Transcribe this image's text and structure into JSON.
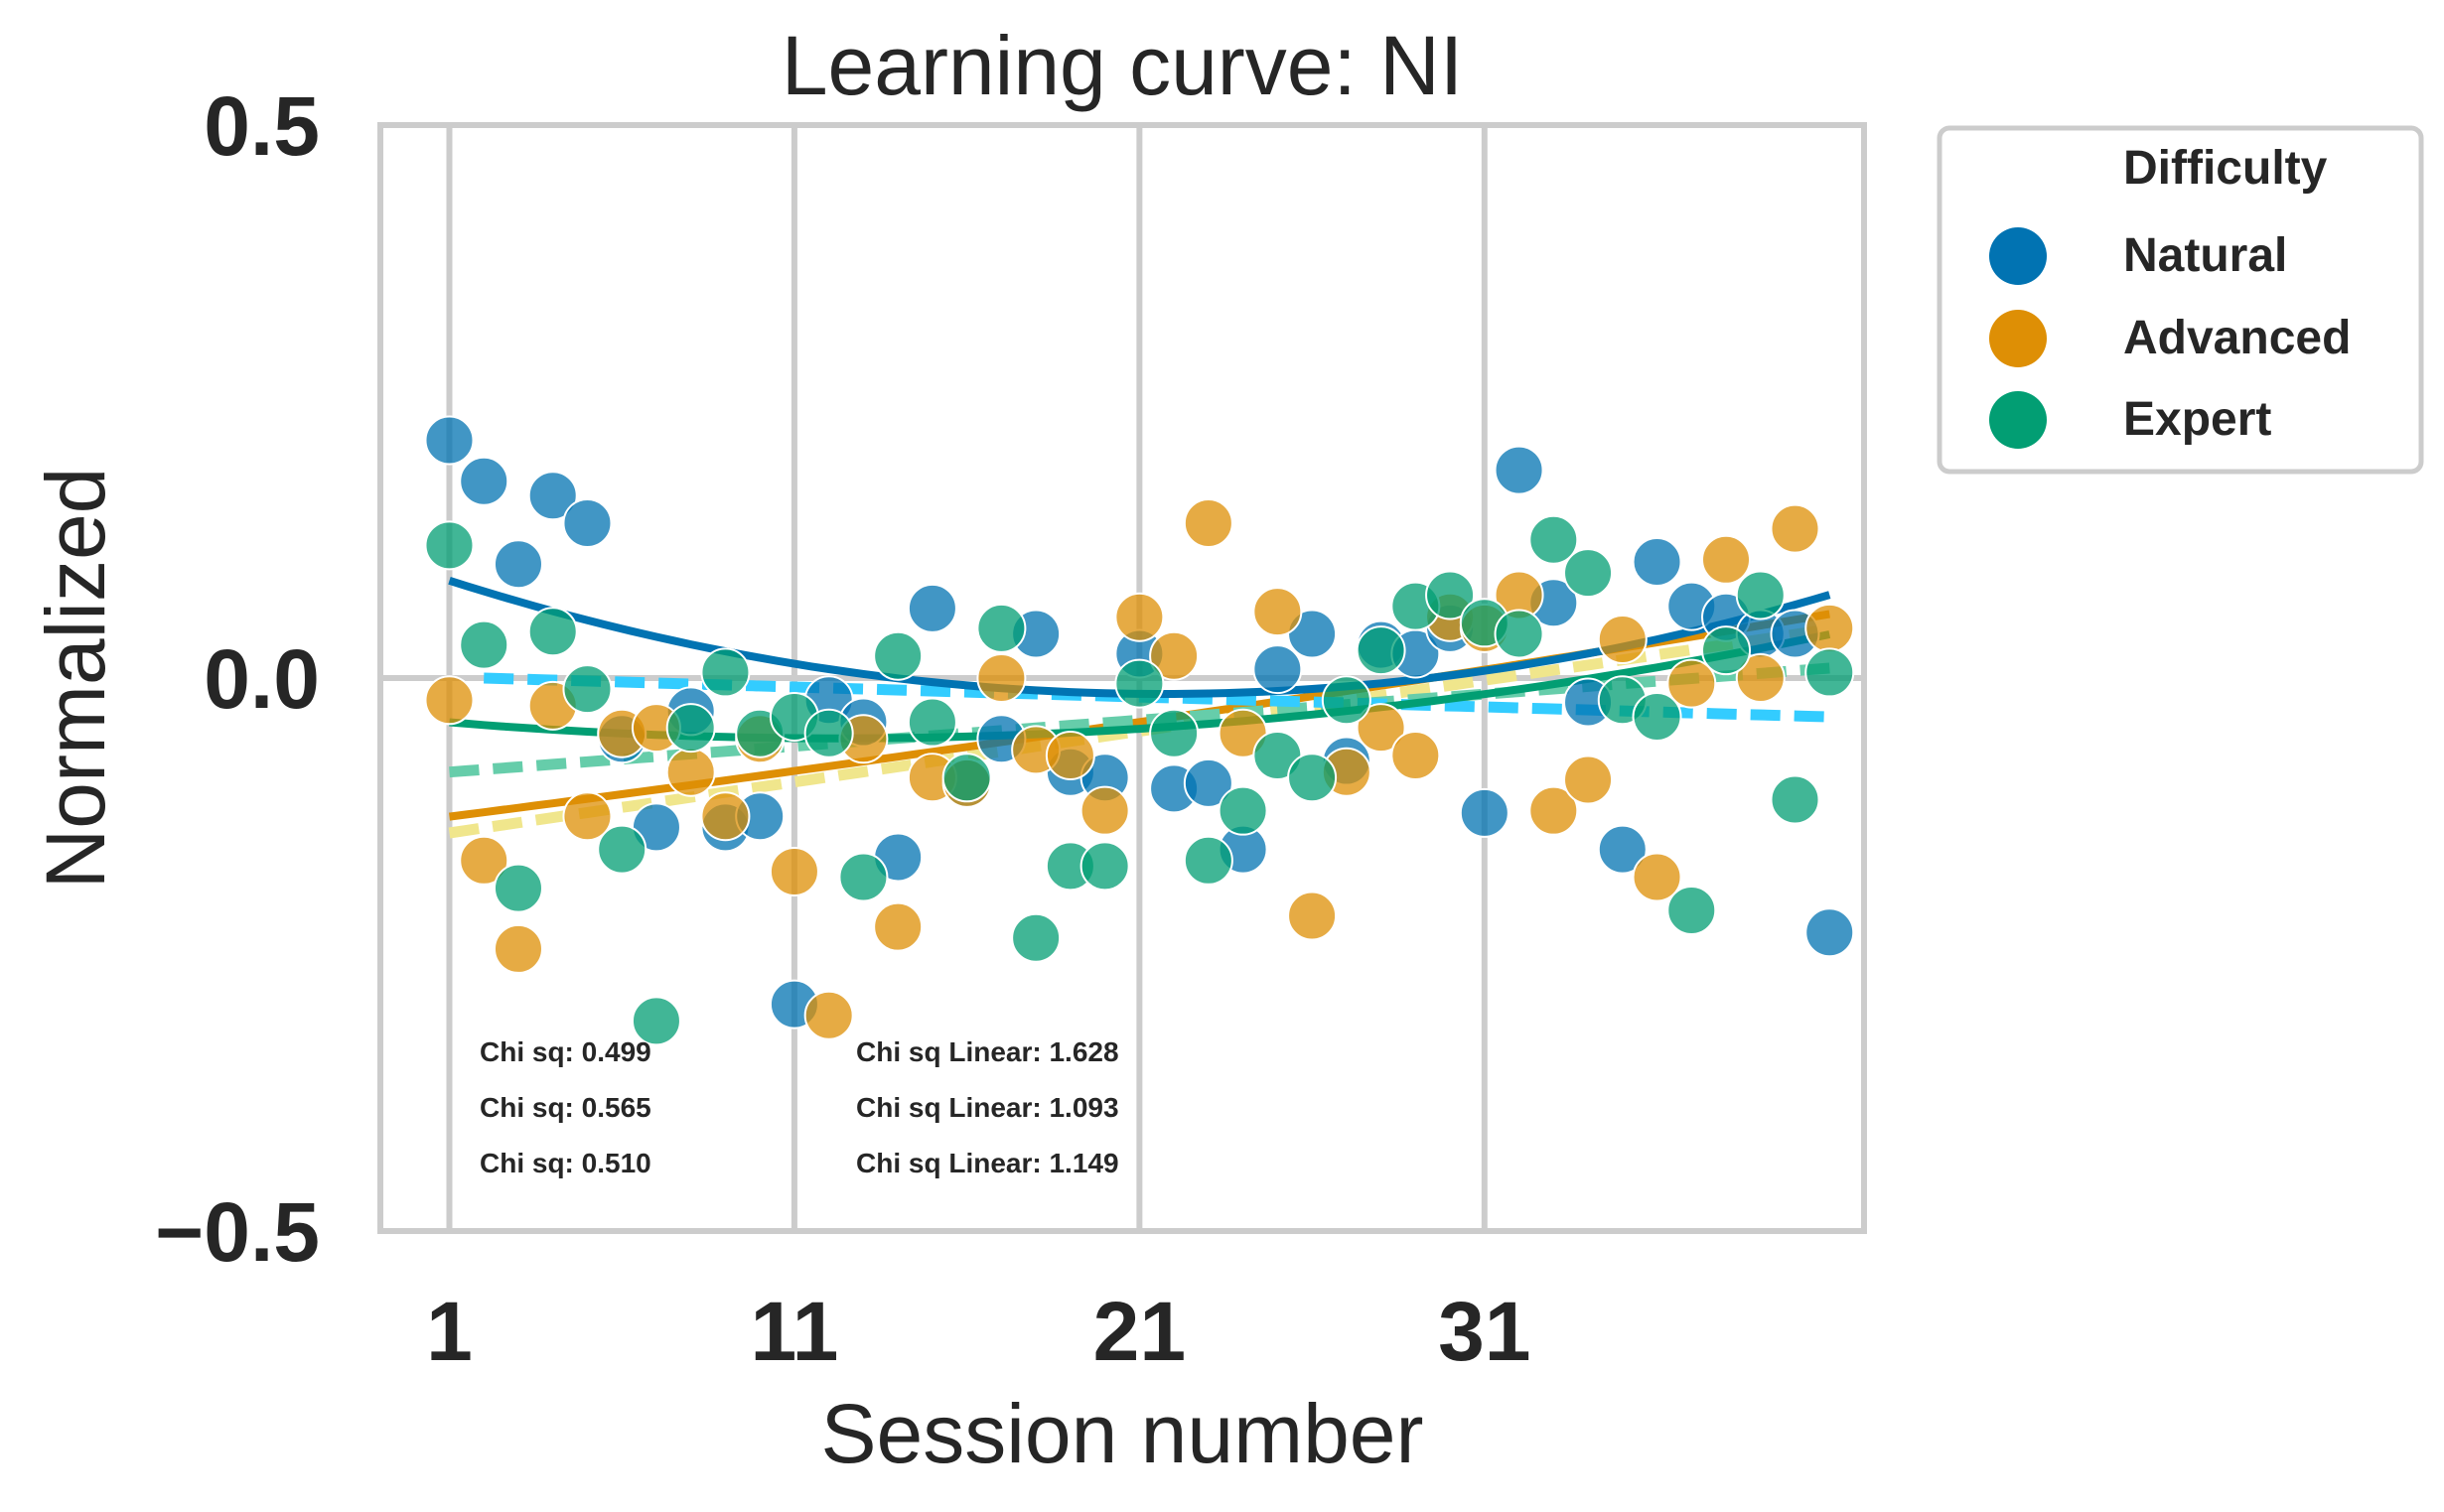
{
  "chart_data": {
    "type": "scatter",
    "title": "Learning curve: NI",
    "xlabel": "Session number",
    "ylabel": "Normalized",
    "xlim": [
      -1,
      42
    ],
    "ylim": [
      -0.5,
      0.5
    ],
    "xticks": [
      1,
      11,
      21,
      31
    ],
    "yticks": [
      0.5,
      0.0,
      -0.5
    ],
    "ytick_labels": [
      "0.5",
      "0.0",
      "−0.5"
    ],
    "grid": true,
    "legend": {
      "title": "Difficulty",
      "placement": "outside-top-right",
      "entries": [
        "Natural",
        "Advanced",
        "Expert"
      ]
    },
    "colors": {
      "Natural": "#0173b2",
      "Advanced": "#de8f05",
      "Expert": "#029e73",
      "Natural_linear": "#33ccff",
      "Advanced_linear": "#f0e68c",
      "Expert_linear": "#66cdaa",
      "grid": "#cccccc"
    },
    "series": [
      {
        "name": "Natural",
        "x": [
          1,
          2,
          3,
          4,
          5,
          6,
          7,
          8,
          9,
          10,
          11,
          12,
          13,
          14,
          15,
          16,
          17,
          18,
          19,
          20,
          21,
          22,
          23,
          24,
          25,
          26,
          27,
          28,
          29,
          30,
          31,
          32,
          33,
          34,
          35,
          36,
          37,
          38,
          39,
          40,
          41
        ],
        "y": [
          0.215,
          0.178,
          0.103,
          0.165,
          0.14,
          -0.055,
          -0.135,
          -0.03,
          -0.135,
          -0.125,
          -0.295,
          -0.02,
          -0.04,
          -0.162,
          0.063,
          -0.095,
          -0.055,
          0.04,
          -0.085,
          -0.09,
          0.022,
          -0.1,
          -0.095,
          -0.155,
          0.008,
          0.04,
          -0.075,
          0.03,
          0.022,
          0.045,
          -0.122,
          0.188,
          0.068,
          -0.022,
          -0.155,
          0.105,
          0.065,
          0.055,
          0.04,
          0.04,
          -0.23
        ]
      },
      {
        "name": "Advanced",
        "x": [
          1,
          2,
          3,
          4,
          5,
          6,
          7,
          8,
          9,
          10,
          11,
          12,
          13,
          14,
          15,
          16,
          17,
          18,
          19,
          20,
          21,
          22,
          23,
          24,
          25,
          26,
          27,
          28,
          29,
          30,
          31,
          32,
          33,
          34,
          35,
          36,
          37,
          38,
          39,
          40,
          41
        ],
        "y": [
          -0.02,
          -0.165,
          -0.245,
          -0.025,
          -0.125,
          -0.05,
          -0.045,
          -0.085,
          -0.125,
          -0.055,
          -0.175,
          -0.305,
          -0.055,
          -0.225,
          -0.09,
          -0.095,
          0.0,
          -0.065,
          -0.07,
          -0.12,
          0.055,
          0.02,
          0.14,
          -0.05,
          0.06,
          -0.215,
          -0.085,
          -0.045,
          -0.07,
          0.055,
          0.045,
          0.075,
          -0.12,
          -0.092,
          0.035,
          -0.18,
          -0.005,
          0.107,
          0.0,
          0.135,
          0.045
        ]
      },
      {
        "name": "Expert",
        "x": [
          1,
          2,
          3,
          4,
          5,
          6,
          7,
          8,
          9,
          10,
          11,
          12,
          13,
          14,
          15,
          16,
          17,
          18,
          19,
          20,
          21,
          22,
          23,
          24,
          25,
          26,
          27,
          28,
          29,
          30,
          31,
          32,
          33,
          34,
          35,
          36,
          37,
          38,
          39,
          40,
          41
        ],
        "y": [
          0.12,
          0.03,
          -0.19,
          0.042,
          -0.01,
          -0.155,
          -0.31,
          -0.045,
          0.005,
          -0.05,
          -0.035,
          -0.05,
          -0.18,
          0.02,
          -0.04,
          -0.09,
          0.045,
          -0.235,
          -0.17,
          -0.17,
          -0.005,
          -0.05,
          -0.165,
          -0.12,
          -0.07,
          -0.09,
          -0.02,
          0.025,
          0.065,
          0.075,
          0.05,
          0.04,
          0.125,
          0.095,
          -0.02,
          -0.035,
          -0.21,
          0.025,
          0.075,
          -0.11,
          0.005
        ]
      }
    ],
    "fits": [
      {
        "series": "Natural",
        "kind": "quadratic",
        "x_range": [
          1,
          41
        ],
        "coefficients": [
          0.00024,
          -0.0104,
          0.0983
        ]
      },
      {
        "series": "Advanced",
        "kind": "quadratic",
        "x_range": [
          1,
          41
        ],
        "coefficients": [
          1.5e-05,
          0.00395,
          -0.1293
        ]
      },
      {
        "series": "Expert",
        "kind": "quadratic",
        "x_range": [
          1,
          41
        ],
        "coefficients": [
          0.000114,
          -0.0028,
          -0.0373
        ]
      },
      {
        "series": "Natural",
        "kind": "linear",
        "x_range": [
          2,
          41
        ],
        "coefficients": [
          -0.0009,
          0.0018
        ]
      },
      {
        "series": "Advanced",
        "kind": "linear",
        "x_range": [
          1,
          41
        ],
        "coefficients": [
          0.0046,
          -0.1446
        ]
      },
      {
        "series": "Expert",
        "kind": "linear",
        "x_range": [
          1,
          41
        ],
        "coefficients": [
          0.00235,
          -0.0874
        ]
      }
    ],
    "annotations": [
      {
        "text": "Chi sq: 0.499",
        "color": "#0173b2"
      },
      {
        "text": "Chi sq: 0.565",
        "color": "#ffc20a"
      },
      {
        "text": "Chi sq: 0.510",
        "color": "#008000"
      },
      {
        "text": "Chi sq Linear: 1.628",
        "color": "#33ccff"
      },
      {
        "text": "Chi sq Linear: 1.093",
        "color": "#f0e68c"
      },
      {
        "text": "Chi sq Linear: 1.149",
        "color": "#66cdaa"
      }
    ]
  }
}
